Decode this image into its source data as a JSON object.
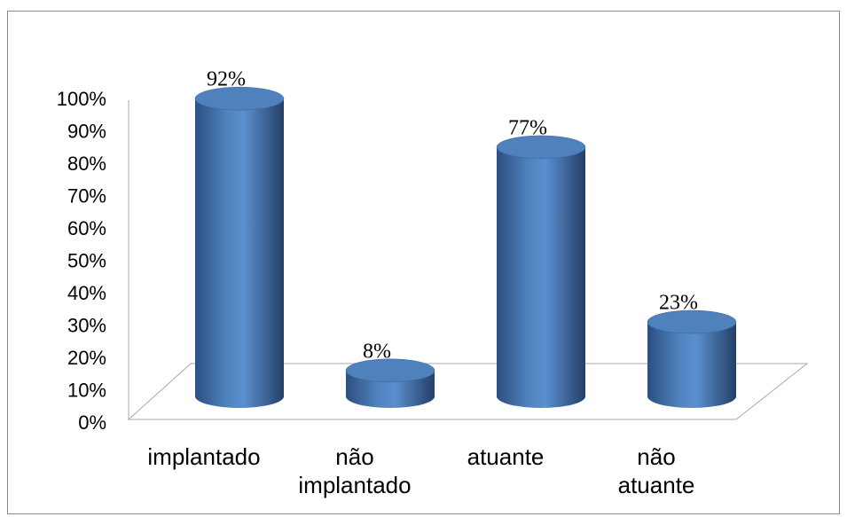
{
  "chart_data": {
    "type": "bar3d",
    "categories": [
      "implantado",
      "não implantado",
      "atuante",
      "não atuante"
    ],
    "values": [
      92,
      8,
      77,
      23
    ],
    "value_labels": [
      "92%",
      "8%",
      "77%",
      "23%"
    ],
    "color": "#4f81bd",
    "ylim": [
      0,
      100
    ],
    "yticks": [
      {
        "value": 0,
        "label": "0%"
      },
      {
        "value": 10,
        "label": "10%"
      },
      {
        "value": 20,
        "label": "20%"
      },
      {
        "value": 30,
        "label": "30%"
      },
      {
        "value": 40,
        "label": "40%"
      },
      {
        "value": 50,
        "label": "50%"
      },
      {
        "value": 60,
        "label": "60%"
      },
      {
        "value": 70,
        "label": "70%"
      },
      {
        "value": 80,
        "label": "80%"
      },
      {
        "value": 90,
        "label": "90%"
      },
      {
        "value": 100,
        "label": "100%"
      }
    ]
  }
}
